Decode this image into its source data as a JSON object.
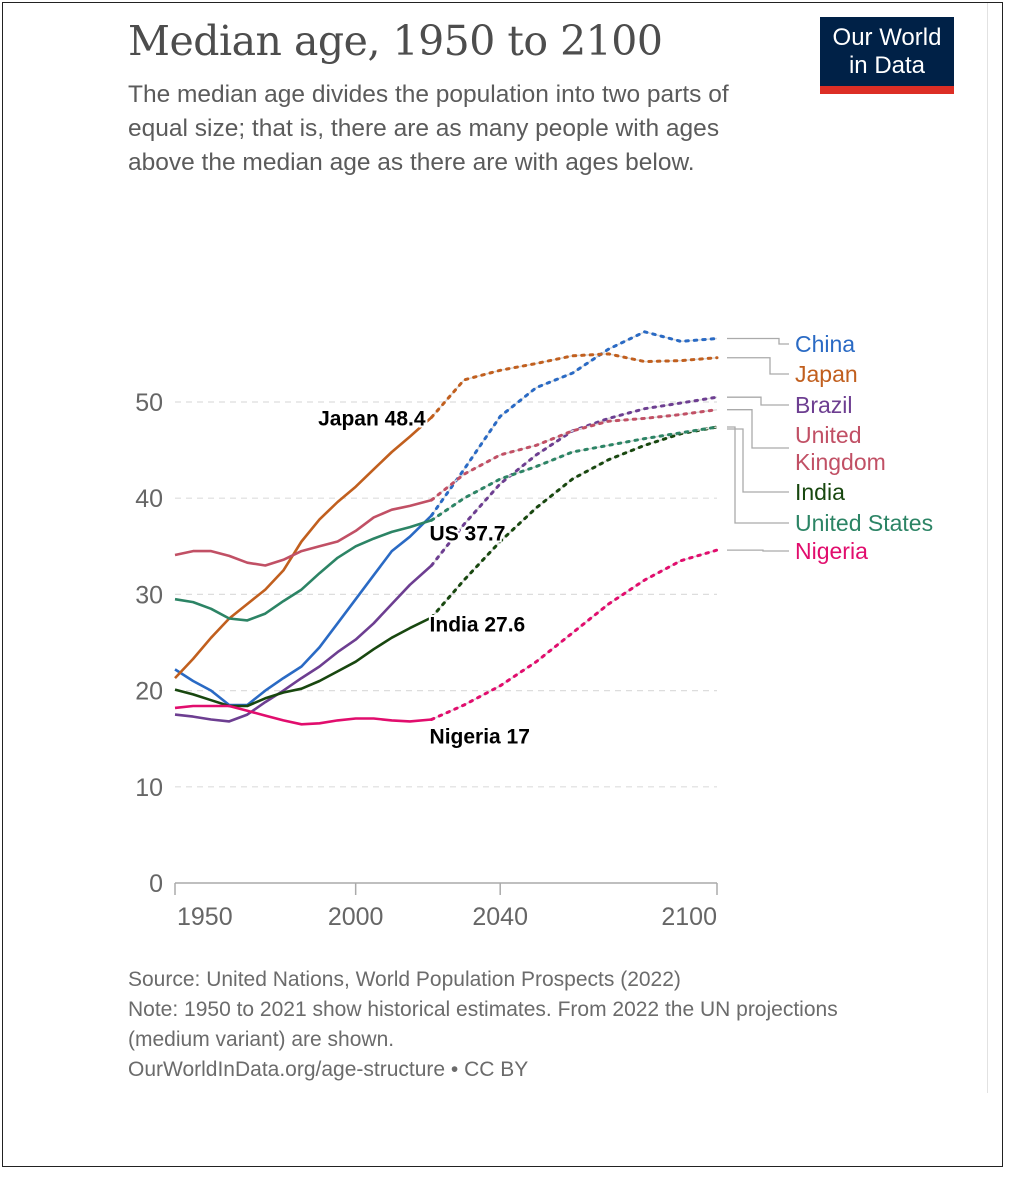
{
  "header": {
    "title": "Median age, 1950 to 2100",
    "subtitle": "The median age divides the population into two parts of equal size; that is, there are as many people with ages above the median age as there are with ages below.",
    "logo_line1": "Our World",
    "logo_line2": "in Data"
  },
  "footer": {
    "source": "Source: United Nations, World Population Prospects (2022)",
    "note": "Note: 1950 to 2021 show historical estimates. From 2022 the UN projections (medium variant) are shown.",
    "link": "OurWorldInData.org/age-structure • CC BY"
  },
  "chart_data": {
    "type": "line",
    "title": "Median age, 1950 to 2100",
    "xlabel": "",
    "ylabel": "",
    "xlim": [
      1950,
      2100
    ],
    "ylim": [
      0,
      57
    ],
    "x_ticks": [
      "1950",
      "2000",
      "2040",
      "2100"
    ],
    "y_ticks": [
      "0",
      "10",
      "20",
      "30",
      "40",
      "50"
    ],
    "grid": "horizontal dashed",
    "legend": "right",
    "projection_start": 2021,
    "projection_style": "dotted",
    "x": [
      1950,
      1955,
      1960,
      1965,
      1970,
      1975,
      1980,
      1985,
      1990,
      1995,
      2000,
      2005,
      2010,
      2015,
      2021,
      2030,
      2040,
      2050,
      2060,
      2070,
      2080,
      2090,
      2100
    ],
    "series": [
      {
        "name": "China",
        "color": "#2a6ac4",
        "values": [
          22.2,
          21,
          20,
          18.5,
          18.5,
          20,
          21.3,
          22.5,
          24.5,
          27,
          29.5,
          32,
          34.5,
          36,
          38.2,
          43,
          48.5,
          51.5,
          53,
          55.5,
          57.3,
          56.3,
          56.6
        ]
      },
      {
        "name": "Japan",
        "color": "#c15f1e",
        "values": [
          21.3,
          23.3,
          25.5,
          27.5,
          29,
          30.5,
          32.5,
          35.5,
          37.8,
          39.6,
          41.2,
          43,
          44.8,
          46.4,
          48.4,
          52.3,
          53.3,
          54,
          54.8,
          55,
          54.2,
          54.3,
          54.6
        ]
      },
      {
        "name": "Brazil",
        "color": "#6d3e91",
        "values": [
          17.5,
          17.3,
          17,
          16.8,
          17.5,
          18.8,
          20,
          21.3,
          22.5,
          24,
          25.3,
          27,
          29,
          31,
          33,
          37.3,
          41.5,
          44.5,
          47,
          48.3,
          49.3,
          49.9,
          50.5
        ]
      },
      {
        "name": "United Kingdom",
        "color": "#c15065",
        "values": [
          34.1,
          34.5,
          34.5,
          34,
          33.3,
          33,
          33.6,
          34.5,
          35,
          35.5,
          36.6,
          38,
          38.8,
          39.2,
          39.8,
          42.5,
          44.5,
          45.5,
          47,
          48,
          48.3,
          48.7,
          49.2
        ]
      },
      {
        "name": "India",
        "color": "#18470f",
        "values": [
          20.1,
          19.6,
          19,
          18.4,
          18.4,
          19.2,
          19.8,
          20.2,
          21,
          22,
          23,
          24.3,
          25.5,
          26.5,
          27.6,
          31.5,
          35.5,
          39,
          42,
          44,
          45.5,
          46.7,
          47.4
        ]
      },
      {
        "name": "United States",
        "color": "#2c8465",
        "values": [
          29.5,
          29.2,
          28.5,
          27.5,
          27.3,
          28,
          29.3,
          30.5,
          32.2,
          33.8,
          35,
          35.8,
          36.5,
          37,
          37.7,
          40,
          42,
          43.3,
          44.8,
          45.5,
          46.2,
          46.8,
          47.4
        ]
      },
      {
        "name": "Nigeria",
        "color": "#e10d6d",
        "values": [
          18.2,
          18.4,
          18.4,
          18.4,
          17.9,
          17.4,
          16.9,
          16.5,
          16.6,
          16.9,
          17.1,
          17.1,
          16.9,
          16.8,
          17,
          18.5,
          20.5,
          23,
          26,
          29,
          31.5,
          33.5,
          34.6
        ]
      }
    ],
    "legend_entries": [
      "China",
      "Japan",
      "Brazil",
      "United Kingdom",
      "India",
      "United States",
      "Nigeria"
    ],
    "legend_lines": {
      "United Kingdom": [
        "United",
        "Kingdom"
      ],
      "United States": [
        "United States"
      ]
    },
    "annotations": [
      {
        "series": "Japan",
        "text": "Japan 48.4"
      },
      {
        "series": "United States",
        "text": "US 37.7"
      },
      {
        "series": "India",
        "text": "India 27.6"
      },
      {
        "series": "Nigeria",
        "text": "Nigeria 17"
      }
    ]
  }
}
